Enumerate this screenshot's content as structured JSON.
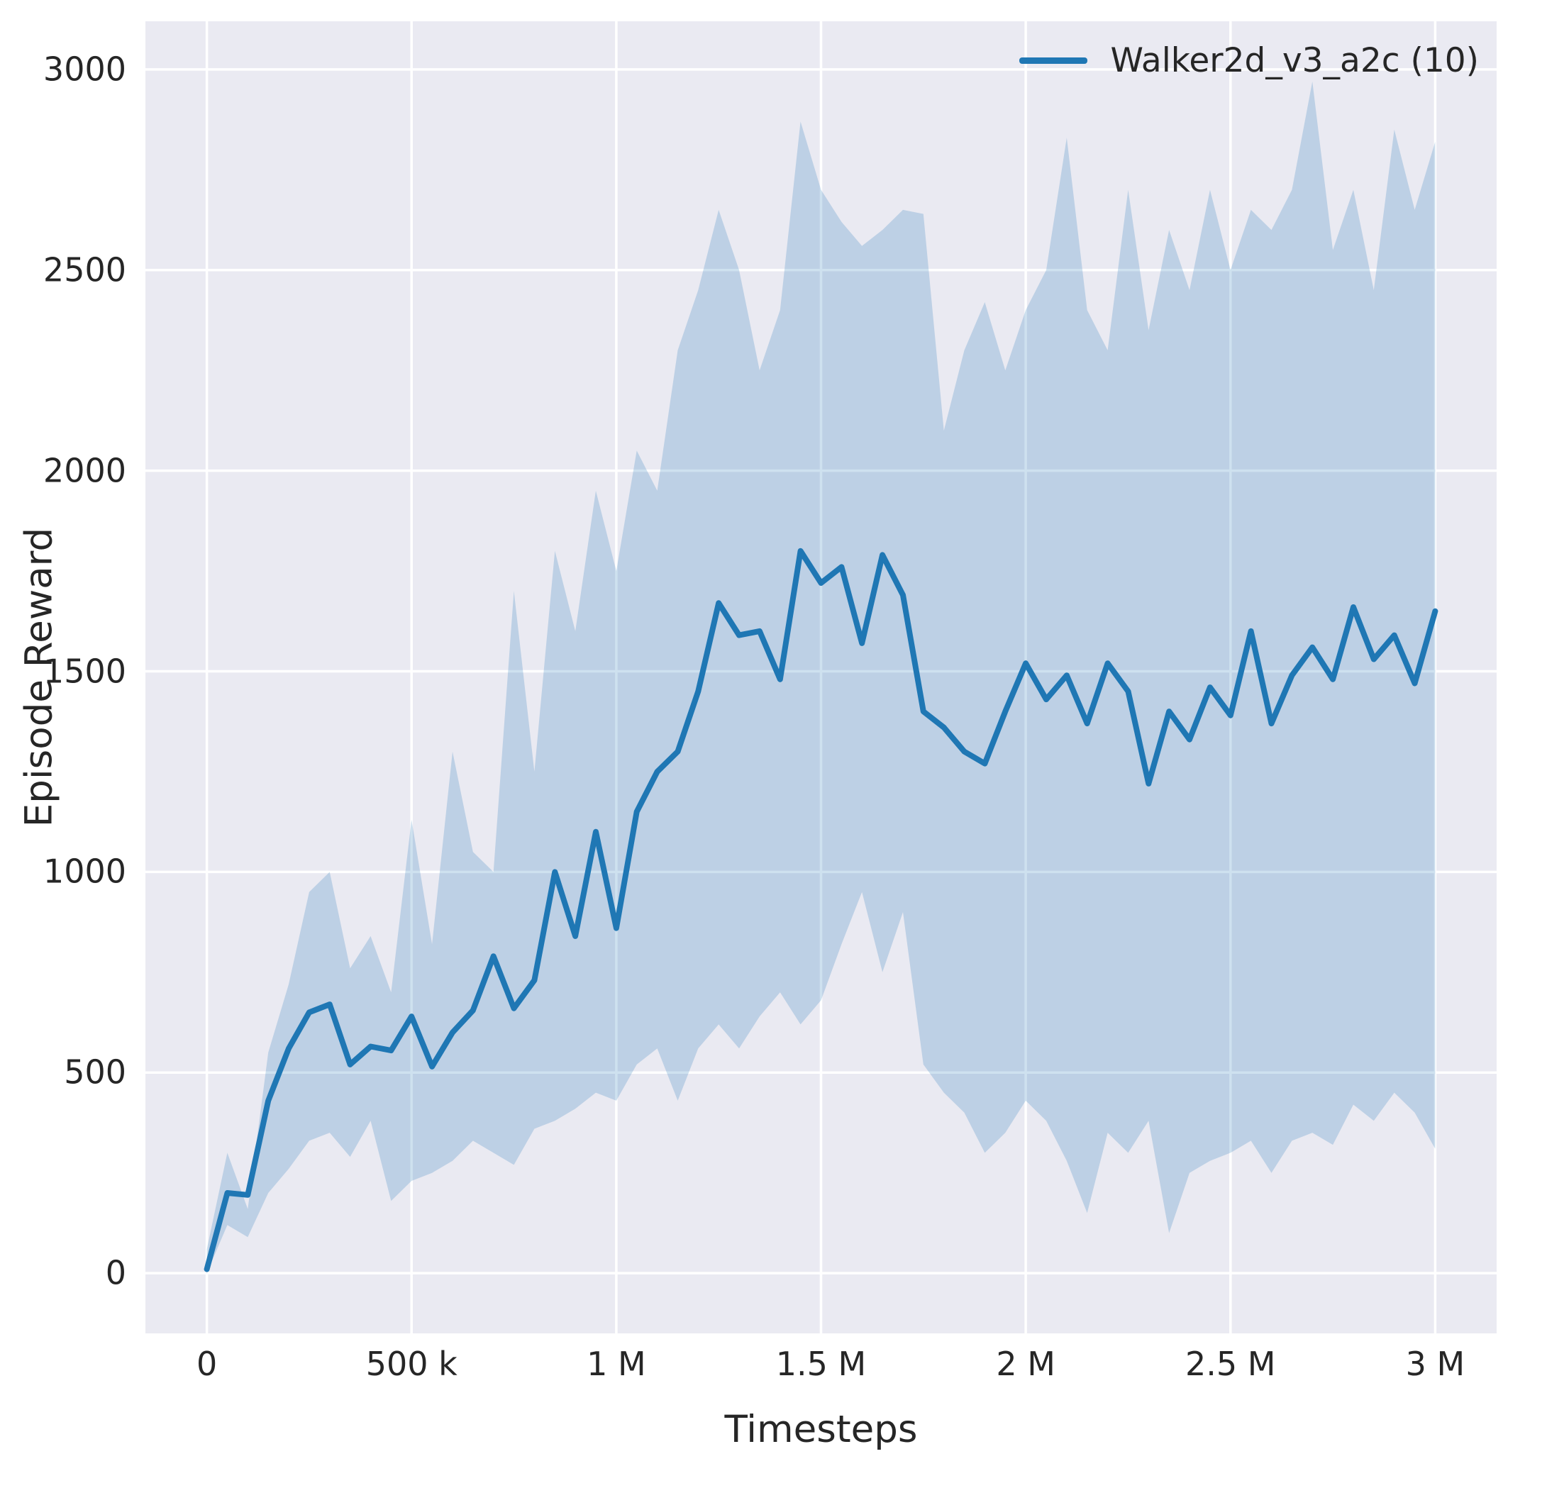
{
  "chart_data": {
    "type": "line",
    "title": "",
    "xlabel": "Timesteps",
    "ylabel": "Episode Reward",
    "grid": true,
    "legend_position": "upper right",
    "xlim": [
      -150000,
      3150000
    ],
    "ylim": [
      -150,
      3120
    ],
    "xticks": [
      {
        "value": 0,
        "label": "0"
      },
      {
        "value": 500000,
        "label": "500 k"
      },
      {
        "value": 1000000,
        "label": "1 M"
      },
      {
        "value": 1500000,
        "label": "1.5 M"
      },
      {
        "value": 2000000,
        "label": "2 M"
      },
      {
        "value": 2500000,
        "label": "2.5 M"
      },
      {
        "value": 3000000,
        "label": "3 M"
      }
    ],
    "yticks": [
      {
        "value": 0,
        "label": "0"
      },
      {
        "value": 500,
        "label": "500"
      },
      {
        "value": 1000,
        "label": "1000"
      },
      {
        "value": 1500,
        "label": "1500"
      },
      {
        "value": 2000,
        "label": "2000"
      },
      {
        "value": 2500,
        "label": "2500"
      },
      {
        "value": 3000,
        "label": "3000"
      }
    ],
    "x": [
      0,
      50000,
      100000,
      150000,
      200000,
      250000,
      300000,
      350000,
      400000,
      450000,
      500000,
      550000,
      600000,
      650000,
      700000,
      750000,
      800000,
      850000,
      900000,
      950000,
      1000000,
      1050000,
      1100000,
      1150000,
      1200000,
      1250000,
      1300000,
      1350000,
      1400000,
      1450000,
      1500000,
      1550000,
      1600000,
      1650000,
      1700000,
      1750000,
      1800000,
      1850000,
      1900000,
      1950000,
      2000000,
      2050000,
      2100000,
      2150000,
      2200000,
      2250000,
      2300000,
      2350000,
      2400000,
      2450000,
      2500000,
      2550000,
      2600000,
      2650000,
      2700000,
      2750000,
      2800000,
      2850000,
      2900000,
      2950000,
      3000000
    ],
    "series": [
      {
        "name": "Walker2d_v3_a2c (10)",
        "mean": [
          10,
          200,
          195,
          430,
          560,
          650,
          670,
          520,
          565,
          555,
          640,
          515,
          600,
          655,
          790,
          660,
          730,
          1000,
          840,
          1100,
          860,
          1150,
          1250,
          1300,
          1450,
          1670,
          1590,
          1600,
          1480,
          1800,
          1720,
          1760,
          1570,
          1790,
          1690,
          1400,
          1360,
          1300,
          1270,
          1400,
          1520,
          1430,
          1490,
          1370,
          1520,
          1450,
          1220,
          1400,
          1330,
          1460,
          1390,
          1600,
          1370,
          1490,
          1560,
          1480,
          1660,
          1530,
          1590,
          1470,
          1650
        ],
        "band_lower": [
          0,
          120,
          90,
          200,
          260,
          330,
          350,
          290,
          380,
          180,
          230,
          250,
          280,
          330,
          300,
          270,
          360,
          380,
          410,
          450,
          430,
          520,
          560,
          430,
          560,
          620,
          560,
          640,
          700,
          620,
          680,
          820,
          950,
          750,
          900,
          520,
          450,
          400,
          300,
          350,
          430,
          380,
          280,
          150,
          350,
          300,
          380,
          100,
          250,
          280,
          300,
          330,
          250,
          330,
          350,
          320,
          420,
          380,
          450,
          400,
          310
        ],
        "band_upper": [
          60,
          300,
          160,
          550,
          720,
          950,
          1000,
          760,
          840,
          700,
          1130,
          820,
          1300,
          1050,
          1000,
          1700,
          1250,
          1800,
          1600,
          1950,
          1750,
          2050,
          1950,
          2300,
          2450,
          2650,
          2500,
          2250,
          2400,
          2870,
          2700,
          2620,
          2560,
          2600,
          2650,
          2640,
          2100,
          2300,
          2420,
          2250,
          2400,
          2500,
          2830,
          2400,
          2300,
          2700,
          2350,
          2600,
          2450,
          2700,
          2500,
          2650,
          2600,
          2700,
          2970,
          2550,
          2700,
          2450,
          2850,
          2650,
          2820
        ]
      }
    ],
    "colors": {
      "line": "#1f77b4",
      "band": "rgba(31,119,180,0.22)",
      "grid": "#ffffff",
      "plot_bg": "#eaeaf2",
      "text": "#262626",
      "figure_bg": "#ffffff"
    }
  }
}
